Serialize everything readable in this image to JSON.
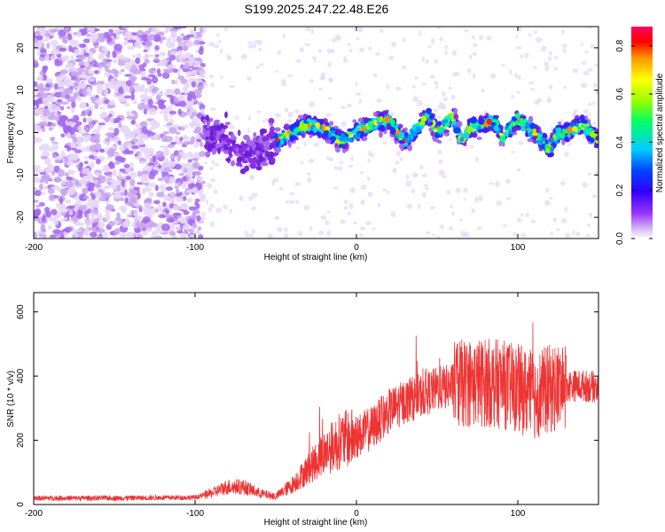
{
  "title": "S199.2025.247.22.48.E26",
  "chart_data": [
    {
      "type": "heatmap",
      "name": "spectrogram",
      "xlabel": "Height of straight line (km)",
      "ylabel": "Frequency (Hz)",
      "xlim": [
        -200,
        150
      ],
      "ylim": [
        -25,
        25
      ],
      "xticks": [
        -200,
        -100,
        0,
        100
      ],
      "yticks": [
        -20,
        -10,
        0,
        10,
        20
      ],
      "colorbar": {
        "label": "Normalized spectral amplitude",
        "range": [
          0.0,
          0.88
        ],
        "ticks": [
          0.0,
          0.2,
          0.4,
          0.6,
          0.8
        ],
        "ticklabels": [
          "0.0",
          "0.2",
          "0.4",
          "0.6",
          "0.8"
        ],
        "colors": [
          "#ffffff",
          "#d9c2f5",
          "#9933ff",
          "#3300ff",
          "#0044ff",
          "#00ccff",
          "#00ff66",
          "#99ff00",
          "#ffff00",
          "#ff9900",
          "#ff0000",
          "#ff0066"
        ]
      },
      "signal_track": {
        "x": [
          -95,
          -80,
          -70,
          -60,
          -50,
          -40,
          -30,
          -20,
          -10,
          0,
          10,
          20,
          30,
          40,
          45,
          50,
          60,
          65,
          70,
          80,
          85,
          90,
          100,
          110,
          120,
          125,
          130,
          140,
          150
        ],
        "freq": [
          0,
          -2,
          -5,
          -4,
          -2,
          0,
          2,
          1,
          -2,
          0,
          2,
          3,
          -2,
          2,
          4,
          0,
          4,
          -2,
          1,
          2,
          3,
          -1,
          3,
          0,
          -4,
          0,
          0,
          2,
          -2
        ]
      }
    },
    {
      "type": "line",
      "name": "snr",
      "xlabel": "Height of straight line (km)",
      "ylabel": "SNR (10 * v/v)",
      "xlim": [
        -200,
        150
      ],
      "ylim": [
        0,
        660
      ],
      "xticks": [
        -200,
        -100,
        0,
        100
      ],
      "yticks": [
        0,
        200,
        400,
        600
      ],
      "color": "#ee3333",
      "envelope": {
        "x": [
          -200,
          -150,
          -100,
          -90,
          -80,
          -70,
          -60,
          -50,
          -40,
          -30,
          -20,
          -10,
          0,
          10,
          20,
          30,
          40,
          50,
          60,
          70,
          80,
          90,
          100,
          110,
          120,
          130,
          140,
          150
        ],
        "y": [
          20,
          20,
          22,
          35,
          55,
          55,
          35,
          25,
          60,
          110,
          160,
          200,
          210,
          240,
          290,
          320,
          340,
          360,
          370,
          380,
          380,
          375,
          360,
          340,
          360,
          370,
          370,
          365
        ]
      }
    }
  ]
}
